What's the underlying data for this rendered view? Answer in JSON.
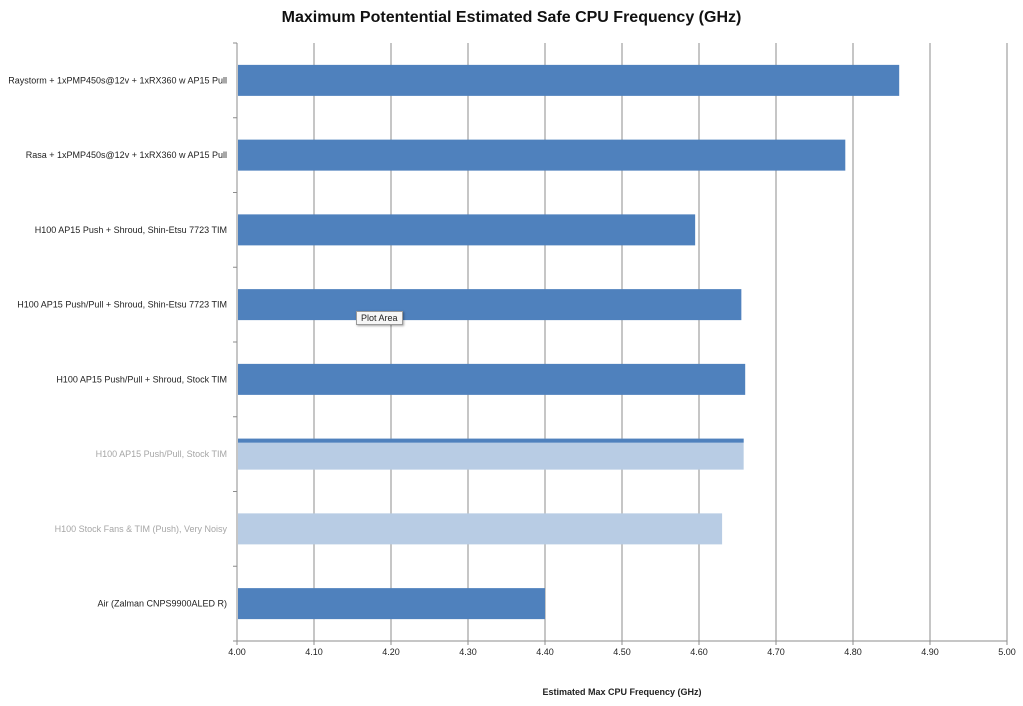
{
  "chart_data": {
    "type": "bar",
    "orientation": "horizontal",
    "title": "Maximum Potentential Estimated Safe CPU Frequency (GHz)",
    "xlabel": "Estimated Max CPU Frequency (GHz)",
    "ylabel": "",
    "xlim": [
      4.0,
      5.0
    ],
    "x_ticks": [
      "4.00",
      "4.10",
      "4.20",
      "4.30",
      "4.40",
      "4.50",
      "4.60",
      "4.70",
      "4.80",
      "4.90",
      "5.00"
    ],
    "grid": true,
    "legend": "none",
    "categories": [
      "Raystorm + 1xPMP450s@12v + 1xRX360 w AP15 Pull",
      "Rasa + 1xPMP450s@12v + 1xRX360 w AP15 Pull",
      "H100 AP15 Push + Shroud, Shin-Etsu 7723 TIM",
      "H100 AP15 Push/Pull + Shroud, Shin-Etsu 7723 TIM",
      "H100 AP15 Push/Pull + Shroud, Stock TIM",
      "H100 AP15 Push/Pull, Stock TIM",
      "H100 Stock Fans & TIM (Push), Very Noisy",
      "Air (Zalman CNPS9900ALED R)"
    ],
    "values": [
      4.86,
      4.79,
      4.595,
      4.655,
      4.66,
      4.658,
      4.63,
      4.4
    ],
    "bar_color": "#4f81bd",
    "faded_bar_color": "#b8cce4"
  },
  "tooltip": {
    "text": "Plot Area"
  }
}
